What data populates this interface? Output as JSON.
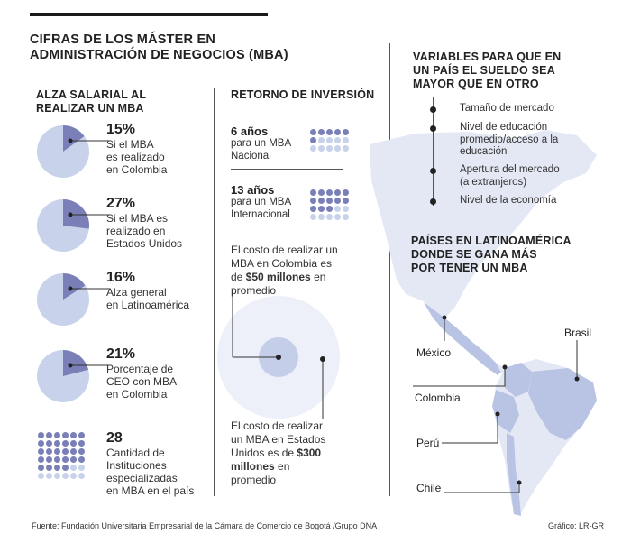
{
  "header": {
    "title_line1": "CIFRAS DE LOS MÁSTER EN",
    "title_line2": "ADMINISTRACIÓN DE NEGOCIOS (MBA)"
  },
  "alza": {
    "heading_line1": "ALZA SALARIAL AL",
    "heading_line2": "REALIZAR UN MBA",
    "items": [
      {
        "pct": "15%",
        "value": 15,
        "l1": "Si el MBA",
        "l2": "es realizado",
        "l3": "en Colombia"
      },
      {
        "pct": "27%",
        "value": 27,
        "l1": "Si el MBA es",
        "l2": "realizado en",
        "l3": "Estados Unidos"
      },
      {
        "pct": "16%",
        "value": 16,
        "l1": "Alza general",
        "l2": "en Latinoamérica",
        "l3": ""
      },
      {
        "pct": "21%",
        "value": 21,
        "l1": "Porcentaje de",
        "l2": "CEO con MBA",
        "l3": "en Colombia"
      }
    ],
    "count": {
      "value": "28",
      "l1": "Cantidad de",
      "l2": "Instituciones",
      "l3": "especializadas",
      "l4": "en MBA en el país",
      "number": 28
    }
  },
  "retorno": {
    "heading": "RETORNO DE INVERSIÓN",
    "item1": {
      "years": "6 años",
      "l1": "para un MBA",
      "l2": "Nacional",
      "count": 6
    },
    "item2": {
      "years": "13 años",
      "l1": "para un MBA",
      "l2": "Internacional",
      "count": 13
    },
    "cost1": {
      "l1": "El costo de realizar un",
      "l2": "MBA en Colombia es",
      "l3_pre": "de ",
      "l3_bold": "$50 millones",
      "l3_post": " en",
      "l4": "promedio"
    },
    "cost2": {
      "l1": "El costo de realizar",
      "l2": "un MBA en Estados",
      "l3_pre": "Unidos es de ",
      "l3_bold": "$300",
      "l4_bold": "millones",
      "l4_post": " en",
      "l5": "promedio"
    }
  },
  "variables": {
    "heading_line1": "VARIABLES PARA QUE EN",
    "heading_line2": "UN PAÍS EL SUELDO SEA",
    "heading_line3": "MAYOR QUE EN OTRO",
    "items": [
      {
        "l1": "Tamaño de mercado",
        "l2": "",
        "l3": ""
      },
      {
        "l1": "Nivel de educación",
        "l2": "promedio/acceso a la",
        "l3": "educación"
      },
      {
        "l1": "Apertura del mercado",
        "l2": "(a extranjeros)",
        "l3": ""
      },
      {
        "l1": "Nivel de la economía",
        "l2": "",
        "l3": ""
      }
    ]
  },
  "paises": {
    "heading_line1": "PAÍSES EN LATINOAMÉRICA",
    "heading_line2": "DONDE SE GANA MÁS",
    "heading_line3": "POR TENER UN MBA",
    "countries": [
      "Brasil",
      "México",
      "Colombia",
      "Perú",
      "Chile"
    ]
  },
  "footer": {
    "source": "Fuente: Fundación Universitaria Empresarial de la Cámara de Comercio de Bogotá /Grupo DNA",
    "credit": "Gráfico: LR-GR"
  },
  "colors": {
    "pie_light": "#c8d2ea",
    "pie_dark": "#7a7fb8",
    "dot_dark": "#7a7fb8",
    "dot_light": "#c8d2ea",
    "map": "#dfe4f2",
    "map_highlight": "#b7c3e4"
  }
}
